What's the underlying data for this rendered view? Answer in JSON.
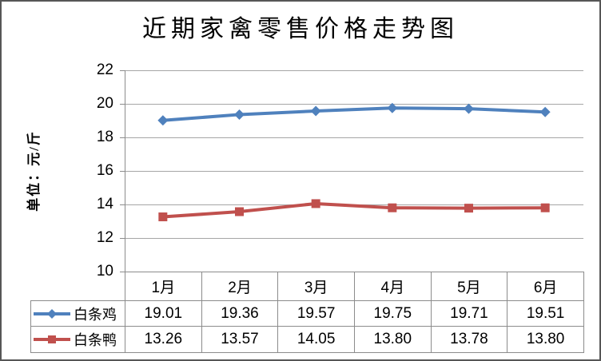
{
  "chart_data": {
    "type": "line",
    "title": "近期家禽零售价格走势图",
    "ylabel": "单位：元/斤",
    "xlabel": "",
    "categories": [
      "1月",
      "2月",
      "3月",
      "4月",
      "5月",
      "6月"
    ],
    "series": [
      {
        "name": "白条鸡",
        "marker": "diamond",
        "color": "#4F81BD",
        "values": [
          19.01,
          19.36,
          19.57,
          19.75,
          19.71,
          19.51
        ],
        "formatted": [
          "19.01",
          "19.36",
          "19.57",
          "19.75",
          "19.71",
          "19.51"
        ]
      },
      {
        "name": "白条鸭",
        "marker": "square",
        "color": "#C0504D",
        "values": [
          13.26,
          13.57,
          14.05,
          13.8,
          13.78,
          13.8
        ],
        "formatted": [
          "13.26",
          "13.57",
          "14.05",
          "13.80",
          "13.78",
          "13.80"
        ]
      }
    ],
    "yticks": [
      22,
      20,
      18,
      16,
      14,
      12,
      10
    ],
    "ylim": [
      10,
      22
    ],
    "grid": true,
    "legend_position": "data-table-left",
    "data_table_shown": true
  },
  "colors": {
    "series1": "#4F81BD",
    "series2": "#C0504D",
    "gridline": "#A6A6A6",
    "axis": "#8C8C8C",
    "table_border": "#8C8C8C",
    "frame_border": "#565656",
    "text": "#000000",
    "background": "#FFFFFF"
  }
}
